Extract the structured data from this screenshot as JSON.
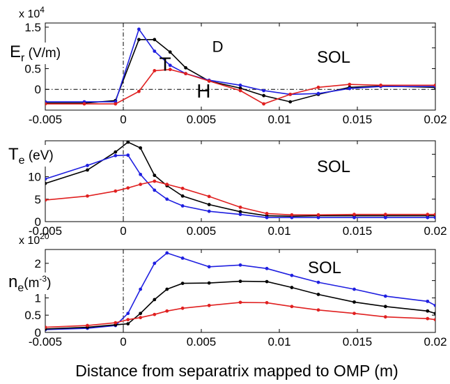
{
  "figure": {
    "xlabel": "Distance from separatrix mapped to OMP (m)",
    "colors": {
      "T": "#1f1fe0",
      "D": "#000000",
      "H": "#e02020"
    }
  },
  "chart_data": [
    {
      "type": "line",
      "title": "",
      "multiplier": {
        "base": "x 10",
        "exp": "4"
      },
      "ylabel": {
        "main": "E",
        "sub": "r",
        "unit": " (V/m)"
      },
      "region_label": "SOL",
      "xlim": [
        -0.005,
        0.02
      ],
      "ylim": [
        -0.5,
        1.6
      ],
      "xticks": [
        "-0.005",
        "0",
        "0.005",
        "0.01",
        "0.015",
        "0.02"
      ],
      "yticks": [
        "0",
        "0.5",
        "1",
        "1.5"
      ],
      "ytick_values": [
        0,
        0.5,
        1,
        1.5
      ],
      "zero_line": true,
      "separatrix_line": true,
      "series": [
        {
          "name": "D",
          "color": "#000000",
          "x": [
            -0.005,
            -0.0025,
            -0.0005,
            0.001,
            0.002,
            0.003,
            0.004,
            0.0055,
            0.0075,
            0.009,
            0.0107,
            0.0125,
            0.0145,
            0.0165,
            0.02
          ],
          "y": [
            -0.33,
            -0.33,
            -0.27,
            1.2,
            1.2,
            0.9,
            0.52,
            0.2,
            0.03,
            -0.15,
            -0.3,
            -0.12,
            0.05,
            0.08,
            0.05
          ]
        },
        {
          "name": "T",
          "color": "#1f1fe0",
          "x": [
            -0.005,
            -0.0025,
            -0.0005,
            0.001,
            0.002,
            0.003,
            0.004,
            0.0055,
            0.0075,
            0.009,
            0.0107,
            0.0125,
            0.0145,
            0.0165,
            0.02
          ],
          "y": [
            -0.3,
            -0.3,
            -0.3,
            1.45,
            0.92,
            0.58,
            0.38,
            0.22,
            0.1,
            -0.03,
            -0.12,
            -0.1,
            0.02,
            0.07,
            0.07
          ]
        },
        {
          "name": "H",
          "color": "#e02020",
          "x": [
            -0.005,
            -0.0025,
            -0.0005,
            0.001,
            0.002,
            0.003,
            0.004,
            0.0055,
            0.0075,
            0.009,
            0.0107,
            0.0125,
            0.0145,
            0.0165,
            0.02
          ],
          "y": [
            -0.35,
            -0.35,
            -0.35,
            -0.05,
            0.45,
            0.48,
            0.38,
            0.2,
            -0.03,
            -0.35,
            -0.12,
            0.05,
            0.12,
            0.1,
            0.1
          ]
        }
      ],
      "annotations": [
        {
          "text": "D",
          "color": "#000000",
          "x": 0.0057,
          "y": 0.9
        },
        {
          "text": "T",
          "color": "#1f1fe0",
          "x": 0.0023,
          "y": 0.45
        },
        {
          "text": "H",
          "color": "#e02020",
          "x": 0.0047,
          "y": -0.2
        }
      ]
    },
    {
      "type": "line",
      "title": "",
      "ylabel": {
        "main": "T",
        "sub": "e",
        "unit": " (eV)"
      },
      "region_label": "SOL",
      "xlim": [
        -0.005,
        0.02
      ],
      "ylim": [
        0,
        18
      ],
      "xticks": [
        "-0.005",
        "0",
        "0.005",
        "0.01",
        "0.015",
        "0.02"
      ],
      "yticks": [
        "0",
        "5",
        "10",
        "15"
      ],
      "ytick_values": [
        0,
        5,
        10,
        15
      ],
      "separatrix_line": true,
      "series": [
        {
          "name": "D",
          "color": "#000000",
          "x": [
            -0.005,
            -0.0023,
            -0.0005,
            0.0003,
            0.0011,
            0.002,
            0.0028,
            0.0038,
            0.0055,
            0.0075,
            0.0092,
            0.0108,
            0.0125,
            0.0148,
            0.0168,
            0.0195,
            0.02
          ],
          "y": [
            8.5,
            11.5,
            15.5,
            17.7,
            16.4,
            10.3,
            8,
            5.7,
            3.8,
            2.2,
            1.3,
            1.2,
            1.3,
            1.3,
            1.3,
            1.3,
            1.3
          ]
        },
        {
          "name": "T",
          "color": "#1f1fe0",
          "x": [
            -0.005,
            -0.0023,
            -0.0005,
            0.0003,
            0.0011,
            0.002,
            0.0028,
            0.0038,
            0.0055,
            0.0075,
            0.0092,
            0.0108,
            0.0125,
            0.0148,
            0.0168,
            0.0195,
            0.02
          ],
          "y": [
            9.5,
            12.5,
            14.7,
            14.8,
            10.5,
            7,
            5,
            3.5,
            2.3,
            1.6,
            0.9,
            0.9,
            0.9,
            0.9,
            0.9,
            0.9,
            0.9
          ]
        },
        {
          "name": "H",
          "color": "#e02020",
          "x": [
            -0.005,
            -0.0023,
            -0.0005,
            0.0003,
            0.0011,
            0.002,
            0.0028,
            0.0038,
            0.0055,
            0.0075,
            0.0092,
            0.0108,
            0.0125,
            0.0148,
            0.0168,
            0.0195,
            0.02
          ],
          "y": [
            4.8,
            5.7,
            6.8,
            7.5,
            8.3,
            9,
            8.3,
            7.4,
            5.6,
            3.2,
            1.8,
            1.5,
            1.5,
            1.6,
            1.6,
            1.6,
            1.6
          ]
        }
      ]
    },
    {
      "type": "line",
      "title": "",
      "multiplier": {
        "base": "x 10",
        "exp": "20"
      },
      "ylabel": {
        "main": "n",
        "sub": "e",
        "unit": "(m",
        "unit_exp": "-3",
        "unit_close": ")"
      },
      "region_label": "SOL",
      "xlim": [
        -0.005,
        0.02
      ],
      "ylim": [
        0,
        2.4
      ],
      "xticks": [
        "-0.005",
        "0",
        "0.005",
        "0.01",
        "0.015",
        "0.02"
      ],
      "yticks": [
        "0",
        "0.5",
        "1",
        "1.5",
        "2"
      ],
      "ytick_values": [
        0,
        0.5,
        1,
        1.5,
        2
      ],
      "separatrix_line": true,
      "series": [
        {
          "name": "T",
          "color": "#1f1fe0",
          "x": [
            -0.005,
            -0.0023,
            -0.0005,
            0.0003,
            0.0011,
            0.002,
            0.0028,
            0.0038,
            0.0055,
            0.0075,
            0.0092,
            0.0108,
            0.0125,
            0.0148,
            0.0168,
            0.0195,
            0.02
          ],
          "y": [
            0.08,
            0.12,
            0.2,
            0.55,
            1.25,
            2.0,
            2.3,
            2.15,
            1.9,
            1.95,
            1.85,
            1.65,
            1.45,
            1.25,
            1.05,
            0.9,
            0.78
          ]
        },
        {
          "name": "D",
          "color": "#000000",
          "x": [
            -0.005,
            -0.0023,
            -0.0005,
            0.0003,
            0.0011,
            0.002,
            0.0028,
            0.0038,
            0.0055,
            0.0075,
            0.0092,
            0.0108,
            0.0125,
            0.0148,
            0.0168,
            0.0195,
            0.02
          ],
          "y": [
            0.1,
            0.15,
            0.22,
            0.25,
            0.55,
            0.95,
            1.25,
            1.42,
            1.43,
            1.48,
            1.47,
            1.3,
            1.1,
            0.88,
            0.75,
            0.62,
            0.55
          ]
        },
        {
          "name": "H",
          "color": "#e02020",
          "x": [
            -0.005,
            -0.0023,
            -0.0005,
            0.0003,
            0.0011,
            0.002,
            0.0028,
            0.0038,
            0.0055,
            0.0075,
            0.0092,
            0.0108,
            0.0125,
            0.0148,
            0.0168,
            0.0195,
            0.02
          ],
          "y": [
            0.15,
            0.2,
            0.28,
            0.37,
            0.43,
            0.52,
            0.62,
            0.7,
            0.78,
            0.87,
            0.86,
            0.75,
            0.65,
            0.55,
            0.45,
            0.4,
            0.37
          ]
        }
      ]
    }
  ]
}
